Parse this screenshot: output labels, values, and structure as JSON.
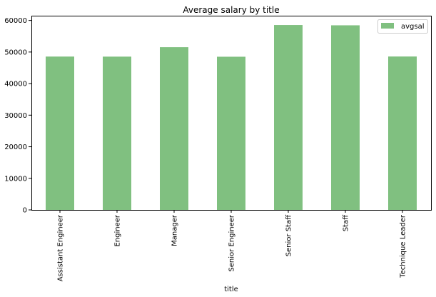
{
  "chart_data": {
    "type": "bar",
    "title": "Average salary by title",
    "xlabel": "title",
    "ylabel": "",
    "categories": [
      "Assistant Engineer",
      "Engineer",
      "Manager",
      "Senior Engineer",
      "Senior Staff",
      "Staff",
      "Technique Leader"
    ],
    "series": [
      {
        "name": "avgsal",
        "values": [
          48560,
          48540,
          51530,
          48510,
          58550,
          58460,
          48580
        ]
      }
    ],
    "ylim": [
      0,
      61500
    ],
    "yticks": [
      0,
      10000,
      20000,
      30000,
      40000,
      50000,
      60000
    ],
    "grid": false,
    "legend": "top-right",
    "colors": {
      "bar": "#80c080",
      "axis": "#000000"
    }
  }
}
